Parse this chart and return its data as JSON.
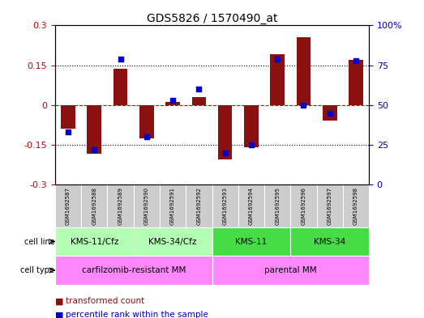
{
  "title": "GDS5826 / 1570490_at",
  "samples": [
    "GSM1692587",
    "GSM1692588",
    "GSM1692589",
    "GSM1692590",
    "GSM1692591",
    "GSM1692592",
    "GSM1692593",
    "GSM1692594",
    "GSM1692595",
    "GSM1692596",
    "GSM1692597",
    "GSM1692598"
  ],
  "bar_values": [
    -0.09,
    -0.185,
    0.135,
    -0.125,
    0.01,
    0.03,
    -0.205,
    -0.16,
    0.19,
    0.255,
    -0.06,
    0.17
  ],
  "blue_values": [
    33,
    22,
    79,
    30,
    53,
    60,
    20,
    25,
    79,
    50,
    45,
    78
  ],
  "ylim": [
    -0.3,
    0.3
  ],
  "yticks_left": [
    -0.3,
    -0.15,
    0,
    0.15,
    0.3
  ],
  "yticks_right": [
    0,
    25,
    50,
    75,
    100
  ],
  "cell_line_groups": [
    {
      "label": "KMS-11/Cfz",
      "start": 0,
      "end": 3
    },
    {
      "label": "KMS-34/Cfz",
      "start": 3,
      "end": 6
    },
    {
      "label": "KMS-11",
      "start": 6,
      "end": 9
    },
    {
      "label": "KMS-34",
      "start": 9,
      "end": 12
    }
  ],
  "cell_line_colors": [
    "#b3ffb3",
    "#b3ffb3",
    "#44dd44",
    "#44dd44"
  ],
  "cell_type_groups": [
    {
      "label": "carfilzomib-resistant MM",
      "start": 0,
      "end": 6
    },
    {
      "label": "parental MM",
      "start": 6,
      "end": 12
    }
  ],
  "cell_type_color": "#ff88ff",
  "bar_color": "#8B1010",
  "blue_color": "#0000CC",
  "dashed_color": "#CC0000",
  "dotted_color": "black",
  "bg_sample": "#cccccc",
  "legend_red_label": "transformed count",
  "legend_blue_label": "percentile rank within the sample",
  "left_tick_color": "#CC0000",
  "right_tick_color": "#0000CC"
}
